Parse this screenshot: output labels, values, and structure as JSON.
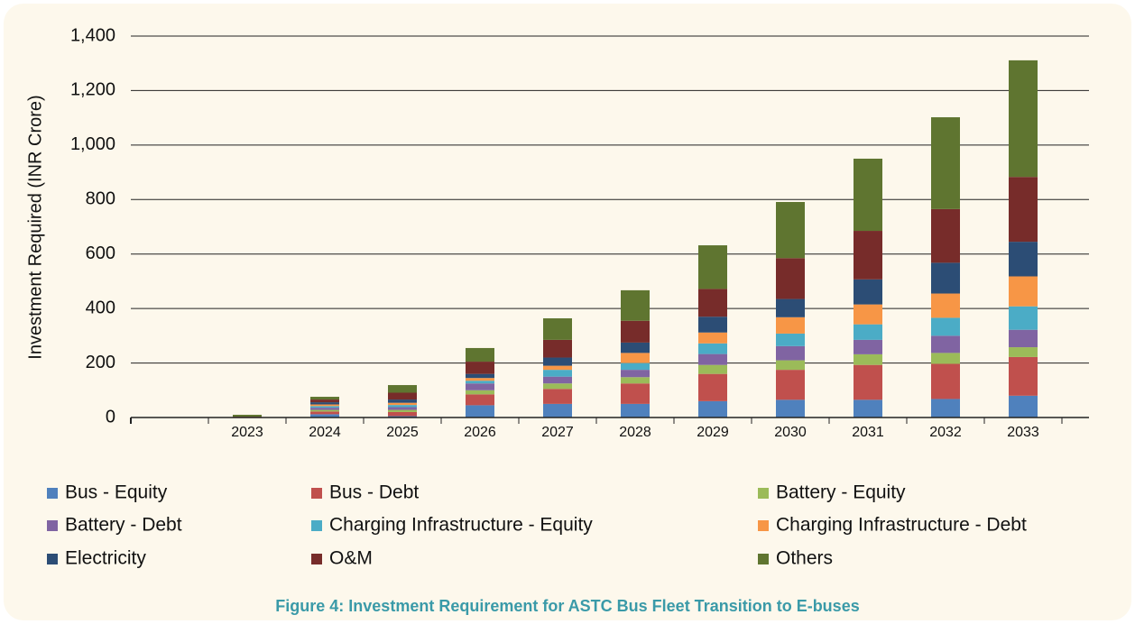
{
  "chart_data": {
    "type": "stacked_bar",
    "caption": "Figure 4: Investment Requirement for ASTC Bus Fleet Transition to E-buses",
    "y_label": "Investment Required (INR Crore)",
    "categories": [
      null,
      "2023",
      "2024",
      "2025",
      "2026",
      "2027",
      "2028",
      "2029",
      "2030",
      "2031",
      "2032",
      "2033"
    ],
    "ylim": [
      0,
      1400
    ],
    "yticks": [
      0,
      200,
      400,
      600,
      800,
      {
        "value": 1000,
        "label": "1,000"
      },
      {
        "value": 1200,
        "label": "1,200"
      },
      {
        "value": 1400,
        "label": "1,400"
      }
    ],
    "grid": true,
    "series": [
      {
        "name": "Bus - Equity",
        "color": "#4f81bd",
        "values": [
          null,
          0,
          12,
          5,
          45,
          50,
          50,
          60,
          65,
          65,
          68,
          80
        ]
      },
      {
        "name": "Bus - Debt",
        "color": "#c0504d",
        "values": [
          null,
          0,
          10,
          15,
          40,
          55,
          75,
          100,
          110,
          128,
          129,
          142
        ]
      },
      {
        "name": "Battery - Equity",
        "color": "#9bbb59",
        "values": [
          null,
          0,
          6,
          8,
          15,
          20,
          23,
          33,
          35,
          39,
          40,
          36
        ]
      },
      {
        "name": "Battery - Debt",
        "color": "#8064a2",
        "values": [
          null,
          0,
          8,
          10,
          25,
          25,
          27,
          40,
          52,
          53,
          63,
          64
        ]
      },
      {
        "name": "Charging Infrastructure - Equity",
        "color": "#4bacc6",
        "values": [
          null,
          0,
          6,
          8,
          10,
          25,
          25,
          39,
          46,
          57,
          66,
          86
        ]
      },
      {
        "name": "Charging Infrastructure - Debt",
        "color": "#f79646",
        "values": [
          null,
          0,
          6,
          8,
          10,
          15,
          37,
          40,
          60,
          73,
          89,
          110
        ]
      },
      {
        "name": "Electricity",
        "color": "#2c4d75",
        "values": [
          null,
          1,
          8,
          12,
          15,
          30,
          38,
          58,
          67,
          92,
          113,
          127
        ]
      },
      {
        "name": "O&M",
        "color": "#772c2a",
        "values": [
          null,
          2,
          10,
          25,
          45,
          65,
          80,
          102,
          150,
          178,
          197,
          238
        ]
      },
      {
        "name": "Others",
        "color": "#5f7530",
        "values": [
          null,
          7,
          10,
          28,
          50,
          79,
          112,
          160,
          206,
          265,
          337,
          428
        ]
      }
    ]
  }
}
